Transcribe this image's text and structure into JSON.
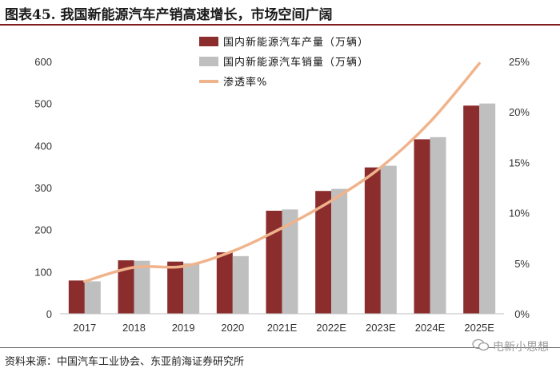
{
  "figure_title": "图表45. 我国新能源汽车产销高速增长，市场空间广阔",
  "source": "资料来源：中国汽车工业协会、东亚前海证券研究所",
  "watermark": "电新小思想",
  "colors": {
    "production": "#8b2d2d",
    "sales": "#bfbfbf",
    "penetration": "#f0b48c",
    "rule": "#7f1d1d"
  },
  "chart_data": {
    "type": "bar",
    "categories": [
      "2017",
      "2018",
      "2019",
      "2020",
      "2021E",
      "2022E",
      "2023E",
      "2024E",
      "2025E"
    ],
    "series": [
      {
        "name": "国内新能源汽车产量（万辆）",
        "type": "bar",
        "axis": "left",
        "values": [
          79,
          127,
          124,
          146,
          245,
          292,
          348,
          415,
          495
        ]
      },
      {
        "name": "国内新能源汽车销量（万辆）",
        "type": "bar",
        "axis": "left",
        "values": [
          77,
          126,
          120,
          137,
          248,
          297,
          352,
          420,
          500
        ]
      },
      {
        "name": "渗透率%",
        "type": "line",
        "axis": "right",
        "values": [
          3.2,
          4.6,
          4.7,
          6.2,
          8.5,
          11.2,
          14.5,
          19.0,
          24.8
        ]
      }
    ],
    "y_left": {
      "min": 0,
      "max": 600,
      "ticks": [
        "0",
        "100",
        "200",
        "300",
        "400",
        "500",
        "600"
      ]
    },
    "y_right": {
      "min": 0,
      "max": 25,
      "ticks": [
        "0%",
        "5%",
        "10%",
        "15%",
        "20%",
        "25%"
      ]
    },
    "legend_position": "top-left"
  }
}
